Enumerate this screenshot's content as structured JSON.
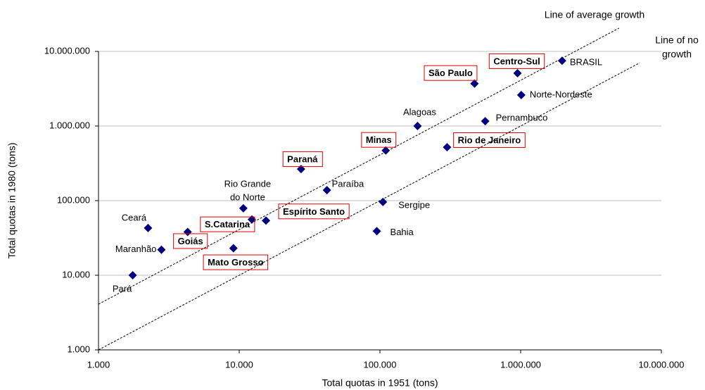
{
  "chart_data": {
    "type": "scatter",
    "x_label": "Total quotas in 1951  (tons)",
    "y_label": "Total quotas in 1980  (tons)",
    "log_x": true,
    "log_y": true,
    "grid_y": true,
    "xlim": [
      1000,
      10000000
    ],
    "ylim": [
      1000,
      10000000
    ],
    "xticks": [
      {
        "value": 1000,
        "label": "1.000"
      },
      {
        "value": 10000,
        "label": "10.000"
      },
      {
        "value": 100000,
        "label": "100.000"
      },
      {
        "value": 1000000,
        "label": "1.000.000"
      },
      {
        "value": 10000000,
        "label": "10.000.000"
      }
    ],
    "yticks": [
      {
        "value": 1000,
        "label": "1.000"
      },
      {
        "value": 10000,
        "label": "10.000"
      },
      {
        "value": 100000,
        "label": "100.000"
      },
      {
        "value": 1000000,
        "label": "1.000.000"
      },
      {
        "value": 10000000,
        "label": "10.000.000"
      }
    ],
    "x": [
      1750,
      2800,
      2250,
      4300,
      9100,
      10700,
      12300,
      15500,
      27500,
      42000,
      110000,
      105000,
      95000,
      185000,
      300000,
      470000,
      560000,
      950000,
      1010000,
      1970000
    ],
    "series": [
      {
        "color": "#000080",
        "values": [
          10000,
          22000,
          43000,
          38000,
          23000,
          79000,
          56000,
          54000,
          265000,
          138000,
          470000,
          96000,
          39000,
          1000000,
          520000,
          3700000,
          1160000,
          5100000,
          2600000,
          7500000
        ],
        "labels": [
          "Pará",
          "Maranhão",
          "Ceará",
          "Goiás",
          "Mato Grosso",
          [
            "Rio Grande",
            "do Norte"
          ],
          "S.Catarina",
          "Espírito Santo",
          "Paraná",
          "Paraíba",
          "Minas",
          "Sergipe",
          "Bahia",
          "Alagoas",
          "Rio de Janeiro",
          "São Paulo",
          "Pernambuco",
          "Centro-Sul",
          "Norte-Nordeste",
          "BRASIL"
        ],
        "boxed": [
          false,
          false,
          false,
          true,
          true,
          false,
          true,
          true,
          true,
          false,
          true,
          false,
          false,
          false,
          true,
          true,
          false,
          true,
          false,
          false
        ]
      }
    ],
    "reference_lines": [
      {
        "label": [
          "Line of average growth"
        ],
        "x": [
          1000,
          5000000
        ],
        "y": [
          4100,
          20500000
        ]
      },
      {
        "label": [
          "Line of no",
          "growth"
        ],
        "x": [
          1000,
          7000000
        ],
        "y": [
          1000,
          7000000
        ]
      }
    ]
  }
}
